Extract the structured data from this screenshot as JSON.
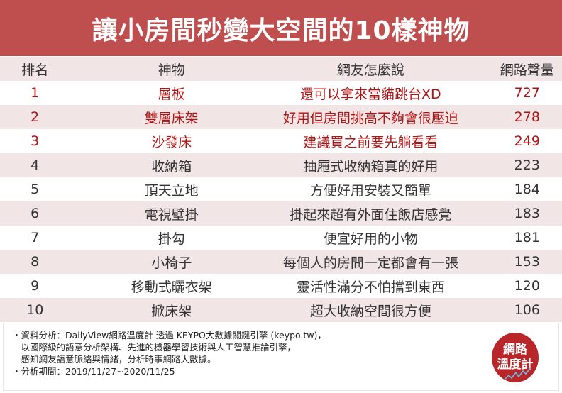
{
  "title": "讓小房間秒變大空間的10樣神物",
  "headers": [
    "排名",
    "神物",
    "網友怎麼說",
    "網路聲量"
  ],
  "rows": [
    {
      "rank": "1",
      "item": "層板",
      "comment": "還可以拿來當貓跳台XD",
      "volume": "727"
    },
    {
      "rank": "2",
      "item": "雙層床架",
      "comment": "好用但房間挑高不夠會很壓迫",
      "volume": "278"
    },
    {
      "rank": "3",
      "item": "沙發床",
      "comment": "建議買之前要先躺看看",
      "volume": "249"
    },
    {
      "rank": "4",
      "item": "收納箱",
      "comment": "抽屜式收納箱真的好用",
      "volume": "223"
    },
    {
      "rank": "5",
      "item": "頂天立地",
      "comment": "方便好用安裝又簡單",
      "volume": "184"
    },
    {
      "rank": "6",
      "item": "電視壁掛",
      "comment": "掛起來超有外面住飯店感覺",
      "volume": "183"
    },
    {
      "rank": "7",
      "item": "掛勾",
      "comment": "便宜好用的小物",
      "volume": "181"
    },
    {
      "rank": "8",
      "item": "小椅子",
      "comment": "每個人的房間一定都會有一張",
      "volume": "153"
    },
    {
      "rank": "9",
      "item": "移動式曬衣架",
      "comment": "靈活性滿分不怕擋到東西",
      "volume": "120"
    },
    {
      "rank": "10",
      "item": "掀床架",
      "comment": "超大收納空間很方便",
      "volume": "106"
    }
  ],
  "footer": {
    "lines": [
      "・資料分析：DailyView網路溫度計 透過 KEYPO大數據關鍵引擎 (keypo.tw)，",
      "　以國際級的語意分析架構、先進的機器學習技術與人工智慧推論引擎，",
      "　感知網友語意脈絡與情緒，分析時事網路大數據。",
      "・分析期間：2019/11/27~2020/11/25"
    ],
    "logo": [
      "網路",
      "溫度計"
    ]
  },
  "colors": {
    "brand_red": "#bf4e4e",
    "highlight_text": "#b01414",
    "band": "#f2e5e5"
  }
}
